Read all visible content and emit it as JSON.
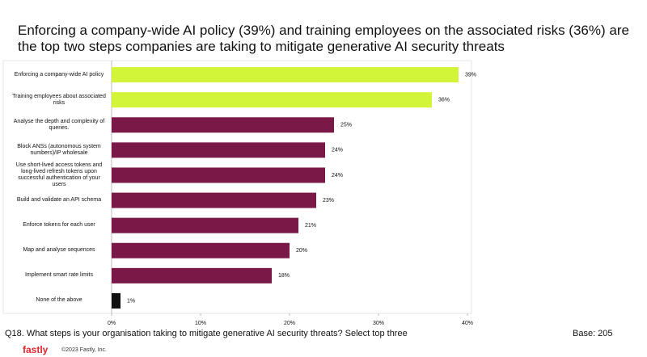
{
  "chart_data": {
    "type": "bar",
    "orientation": "horizontal",
    "title": "Enforcing a company-wide AI policy (39%) and training employees on the associated risks (36%) are the top two steps companies are taking to mitigate generative AI security threats",
    "categories": [
      "Enforcing a company-wide AI policy",
      "Training employees about associated risks",
      "Analyse the depth and complexity of queries.",
      "Block ANSs (autonomous system numbers)/IP wholesale",
      "Use short-lived access tokens and long-lived refresh tokens upon successful authentication of your users",
      "Build and validate an API schema",
      "Enforce tokens for each user",
      "Map and analyse sequences",
      "Implement smart rate limits",
      "None of the above"
    ],
    "values": [
      39,
      36,
      25,
      24,
      24,
      23,
      21,
      20,
      18,
      1
    ],
    "value_labels": [
      "39%",
      "36%",
      "25%",
      "24%",
      "24%",
      "23%",
      "21%",
      "20%",
      "18%",
      "1%"
    ],
    "colors": [
      "#d2f53a",
      "#d2f53a",
      "#7a1848",
      "#7a1848",
      "#7a1848",
      "#7a1848",
      "#7a1848",
      "#7a1848",
      "#7a1848",
      "#111111"
    ],
    "xlim": [
      0,
      40
    ],
    "xticks": [
      {
        "value": 0,
        "label": "0%"
      },
      {
        "value": 10,
        "label": "10%"
      },
      {
        "value": 20,
        "label": "20%"
      },
      {
        "value": 30,
        "label": "30%"
      },
      {
        "value": 40,
        "label": "40%"
      }
    ]
  },
  "footer": {
    "question": "Q18.  What steps is your organisation taking to mitigate generative AI security threats? Select top three",
    "base": "Base: 205",
    "logo": "fastly",
    "copyright": "©2023 Fastly, Inc."
  }
}
